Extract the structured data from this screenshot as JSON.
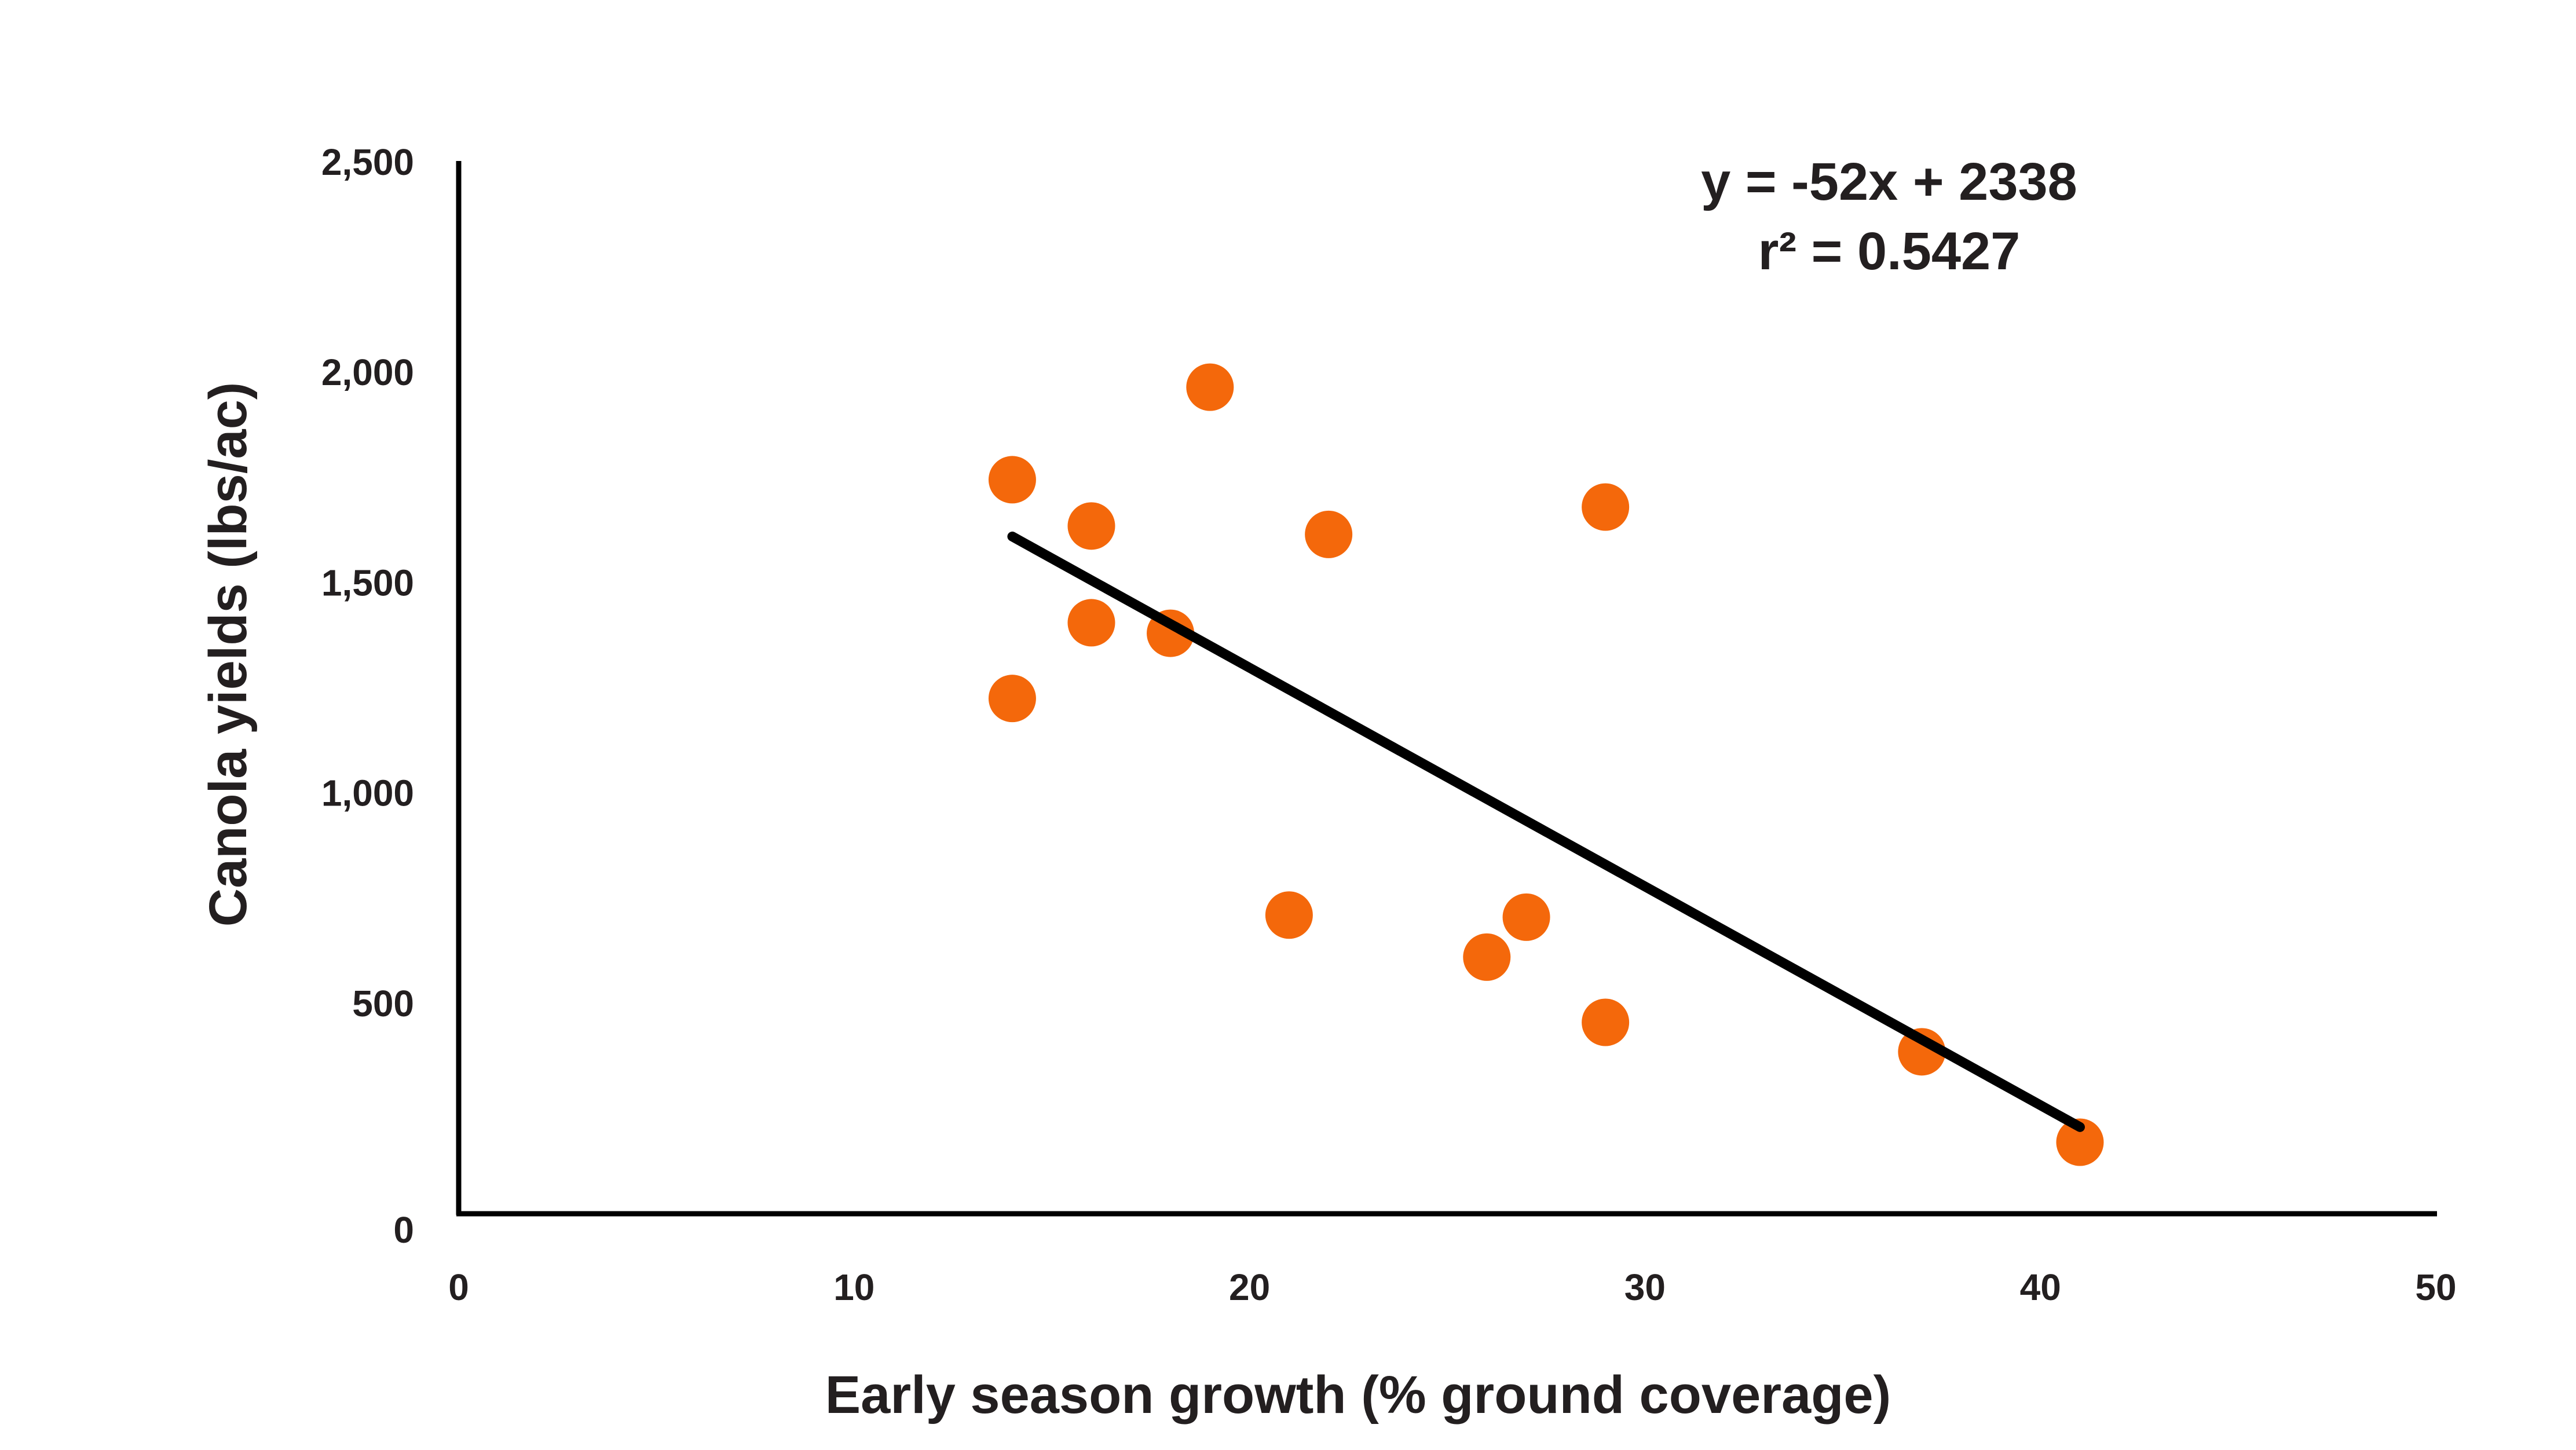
{
  "chart_data": {
    "type": "scatter",
    "title": "",
    "xlabel": "Early season growth (% ground coverage)",
    "ylabel": "Canola yields (lbs/ac)",
    "xlim": [
      0,
      50
    ],
    "ylim": [
      0,
      2500
    ],
    "x_ticks": [
      0,
      10,
      20,
      30,
      40,
      50
    ],
    "x_tick_labels": [
      "0",
      "10",
      "20",
      "30",
      "40",
      "50"
    ],
    "y_ticks": [
      0,
      500,
      1000,
      1500,
      2000,
      2500
    ],
    "y_tick_labels": [
      "0",
      "500",
      "1,000",
      "1,500",
      "2,000",
      "2,500"
    ],
    "grid": false,
    "legend": "none",
    "series": [
      {
        "color": "#f4680b",
        "points": [
          {
            "x": 14,
            "y": 1745
          },
          {
            "x": 16,
            "y": 1635
          },
          {
            "x": 19,
            "y": 1965
          },
          {
            "x": 22,
            "y": 1615
          },
          {
            "x": 29,
            "y": 1680
          },
          {
            "x": 16,
            "y": 1405
          },
          {
            "x": 18,
            "y": 1380
          },
          {
            "x": 14,
            "y": 1225
          },
          {
            "x": 21,
            "y": 710
          },
          {
            "x": 27,
            "y": 705
          },
          {
            "x": 26,
            "y": 610
          },
          {
            "x": 29,
            "y": 455
          },
          {
            "x": 37,
            "y": 385
          },
          {
            "x": 41,
            "y": 170
          }
        ]
      }
    ],
    "trendline": {
      "slope": -52,
      "intercept": 2338,
      "x_range": [
        14,
        41
      ],
      "color": "#000000"
    },
    "annotations": {
      "equation": "y = -52x + 2338",
      "r_squared": "r² = 0.5427"
    }
  }
}
